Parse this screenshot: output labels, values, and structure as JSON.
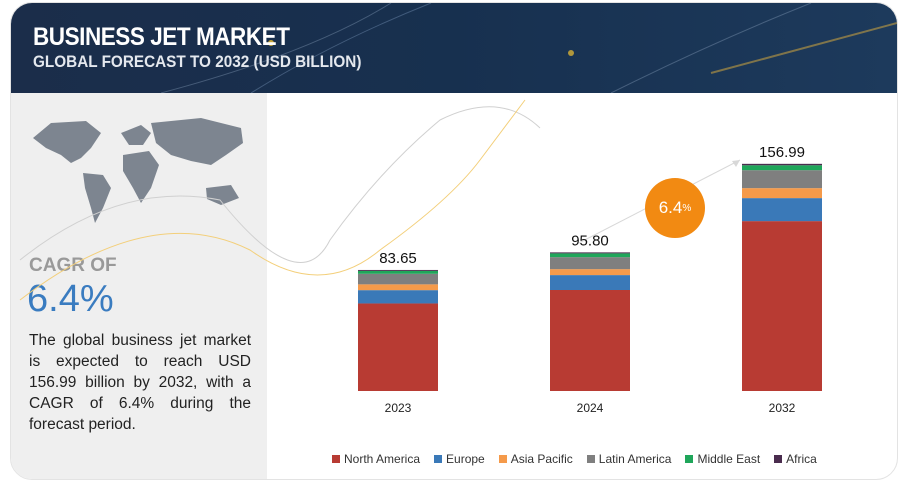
{
  "header": {
    "title": "BUSINESS JET MARKET",
    "subtitle": "GLOBAL FORECAST TO 2032 (USD BILLION)"
  },
  "summary": {
    "cagr_label": "CAGR OF",
    "cagr_value": "6.4%",
    "description": "The global business jet market is expected to reach USD 156.99 billion by 2032, with a CAGR of 6.4% during the forecast period."
  },
  "badge": {
    "value": "6.4",
    "unit": "%"
  },
  "colors": {
    "North America": "#b83b33",
    "Europe": "#3a79b8",
    "Asia Pacific": "#f59a4a",
    "Latin America": "#7f7f7f",
    "Middle East": "#1fa65a",
    "Africa": "#4a2c4e"
  },
  "chart_data": {
    "type": "bar",
    "stacked": true,
    "title": "Business Jet Market, Global Forecast to 2032 (USD Billion)",
    "categories": [
      "2023",
      "2024",
      "2032"
    ],
    "totals": [
      "83.65",
      "95.80",
      "156.99"
    ],
    "series": [
      {
        "name": "North America",
        "values": [
          60.5,
          69.8,
          117.4
        ]
      },
      {
        "name": "Europe",
        "values": [
          9.2,
          10.3,
          15.9
        ]
      },
      {
        "name": "Asia Pacific",
        "values": [
          4.0,
          4.1,
          6.9
        ]
      },
      {
        "name": "Latin America",
        "values": [
          7.3,
          8.3,
          12.4
        ]
      },
      {
        "name": "Middle East",
        "values": [
          2.0,
          2.6,
          3.4
        ]
      },
      {
        "name": "Africa",
        "values": [
          0.65,
          0.7,
          0.99
        ]
      }
    ],
    "xlabel": "",
    "ylabel": "",
    "ylim": [
      0,
      160
    ],
    "grid": false,
    "legend": "bottom"
  }
}
